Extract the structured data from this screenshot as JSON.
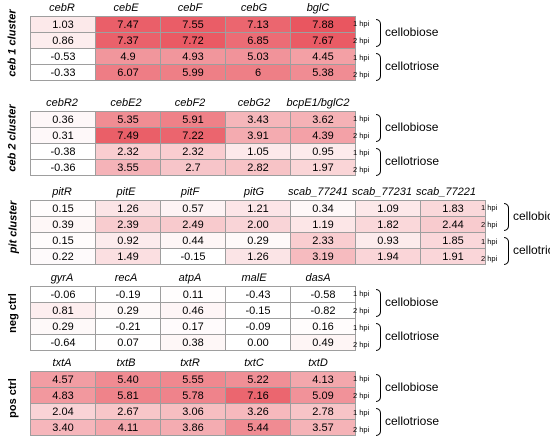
{
  "hpi_labels": [
    "1 hpi",
    "2 hpi",
    "1 hpi",
    "2 hpi"
  ],
  "sugar_labels": [
    "cellobiose",
    "cellotriose"
  ],
  "panels": [
    {
      "label": "ceb 1 cluster",
      "columns": [
        "cebR",
        "cebE",
        "cebF",
        "cebG",
        "bglC"
      ],
      "rows": [
        [
          "1.03",
          "7.47",
          "7.55",
          "7.13",
          "7.88"
        ],
        [
          "0.86",
          "7.37",
          "7.72",
          "6.85",
          "7.67"
        ],
        [
          "-0.53",
          "4.9",
          "4.93",
          "5.03",
          "4.45"
        ],
        [
          "-0.33",
          "6.07",
          "5.99",
          "6",
          "5.38"
        ]
      ]
    },
    {
      "label": "ceb 2 cluster",
      "columns": [
        "cebR2",
        "cebE2",
        "cebF2",
        "cebG2",
        "bcpE1/bglC2"
      ],
      "rows": [
        [
          "0.36",
          "5.35",
          "5.91",
          "3.43",
          "3.62"
        ],
        [
          "0.31",
          "7.49",
          "7.22",
          "3.91",
          "4.39"
        ],
        [
          "-0.38",
          "2.32",
          "2.32",
          "1.05",
          "0.95"
        ],
        [
          "-0.36",
          "3.55",
          "2.7",
          "2.82",
          "1.97"
        ]
      ]
    },
    {
      "label": "pit cluster",
      "columns": [
        "pitR",
        "pitE",
        "pitF",
        "pitG",
        "scab_77241",
        "scab_77231",
        "scab_77221"
      ],
      "rows": [
        [
          "0.15",
          "1.26",
          "0.57",
          "1.21",
          "0.34",
          "1.09",
          "1.83"
        ],
        [
          "0.39",
          "2.39",
          "2.49",
          "2.00",
          "1.19",
          "1.82",
          "2.44"
        ],
        [
          "0.15",
          "0.92",
          "0.44",
          "0.29",
          "2.33",
          "0.93",
          "1.85"
        ],
        [
          "0.22",
          "1.49",
          "-0.15",
          "1.26",
          "3.19",
          "1.94",
          "1.91"
        ]
      ]
    },
    {
      "label": "neg ctrl",
      "columns": [
        "gyrA",
        "recA",
        "atpA",
        "malE",
        "dasA"
      ],
      "rows": [
        [
          "-0.06",
          "-0.19",
          "0.11",
          "-0.43",
          "-0.58"
        ],
        [
          "0.81",
          "0.29",
          "0.46",
          "-0.15",
          "-0.82"
        ],
        [
          "0.29",
          "-0.21",
          "0.17",
          "-0.09",
          "0.16"
        ],
        [
          "-0.64",
          "0.07",
          "0.38",
          "0.00",
          "0.49"
        ]
      ]
    },
    {
      "label": "pos ctrl",
      "columns": [
        "txtA",
        "txtB",
        "txtR",
        "txtC",
        "txtD"
      ],
      "rows": [
        [
          "4.57",
          "5.40",
          "5.55",
          "5.22",
          "4.13"
        ],
        [
          "4.83",
          "5.81",
          "5.78",
          "7.16",
          "5.09"
        ],
        [
          "2.04",
          "2.67",
          "3.06",
          "3.26",
          "2.78"
        ],
        [
          "3.40",
          "4.11",
          "3.86",
          "5.44",
          "3.57"
        ]
      ]
    }
  ]
}
